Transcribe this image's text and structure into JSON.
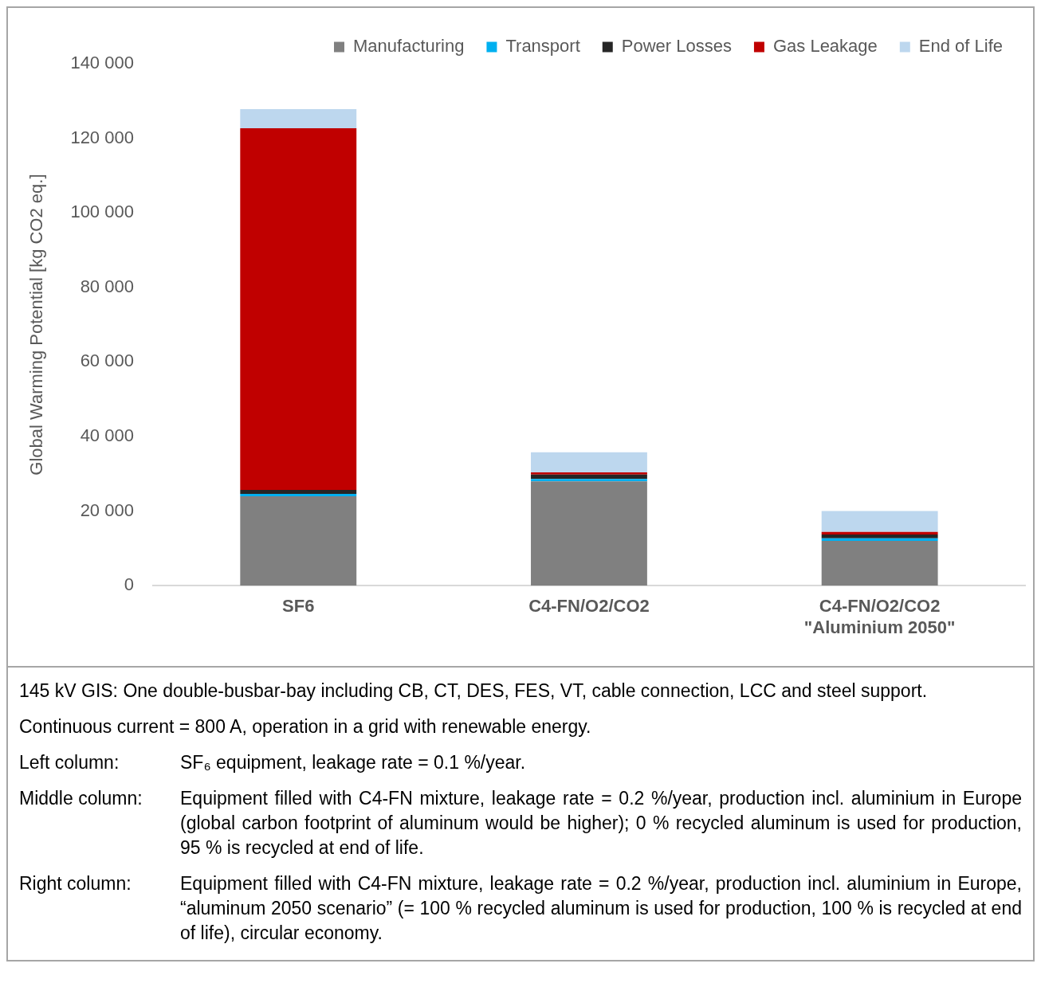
{
  "chart_data": {
    "type": "bar",
    "stacked": true,
    "ylabel": "Global Warming Potential [kg CO2 eq.]",
    "categories": [
      "SF6",
      "C4-FN/O2/CO2",
      "C4-FN/O2/CO2\n\"Aluminium 2050\""
    ],
    "series": [
      {
        "name": "Manufacturing",
        "color": "#808080",
        "values": [
          24000,
          28000,
          12000
        ]
      },
      {
        "name": "Transport",
        "color": "#00b0f0",
        "values": [
          600,
          600,
          700
        ]
      },
      {
        "name": "Power Losses",
        "color": "#262626",
        "values": [
          1100,
          1200,
          1000
        ]
      },
      {
        "name": "Gas Leakage",
        "color": "#c00000",
        "values": [
          97000,
          600,
          700
        ]
      },
      {
        "name": "End of Life",
        "color": "#bdd7ee",
        "values": [
          5100,
          5400,
          5600
        ]
      }
    ],
    "ylim": [
      0,
      140000
    ],
    "yticks": [
      {
        "value": 0,
        "label": "0"
      },
      {
        "value": 20000,
        "label": "20 000"
      },
      {
        "value": 40000,
        "label": "40 000"
      },
      {
        "value": 60000,
        "label": "60 000"
      },
      {
        "value": 80000,
        "label": "80 000"
      },
      {
        "value": 100000,
        "label": "100 000"
      },
      {
        "value": 120000,
        "label": "120 000"
      },
      {
        "value": 140000,
        "label": "140 000"
      }
    ],
    "grid": false,
    "legend": "top right",
    "annotations": [
      "145 kV GIS: One double-busbar-bay including CB, CT, DES, FES, VT, cable connection, LCC and steel support.",
      "Continuous current = 800 A, operation in a grid with renewable energy.",
      "Left column: SF₆ equipment, leakage rate = 0.1 %/year.",
      "Middle column: Equipment filled with C4-FN mixture, leakage rate = 0.2 %/year, production incl. aluminium in Europe (global carbon footprint of aluminum would be higher); 0 % recycled aluminum is used for production, 95 % is recycled at end of life.",
      "Right column: Equipment filled with C4-FN mixture, leakage rate = 0.2 %/year, production incl. aluminium in Europe, “aluminum 2050 scenario” (= 100 % recycled aluminum is used for production, 100 % is recycled at end of life), circular economy."
    ]
  }
}
